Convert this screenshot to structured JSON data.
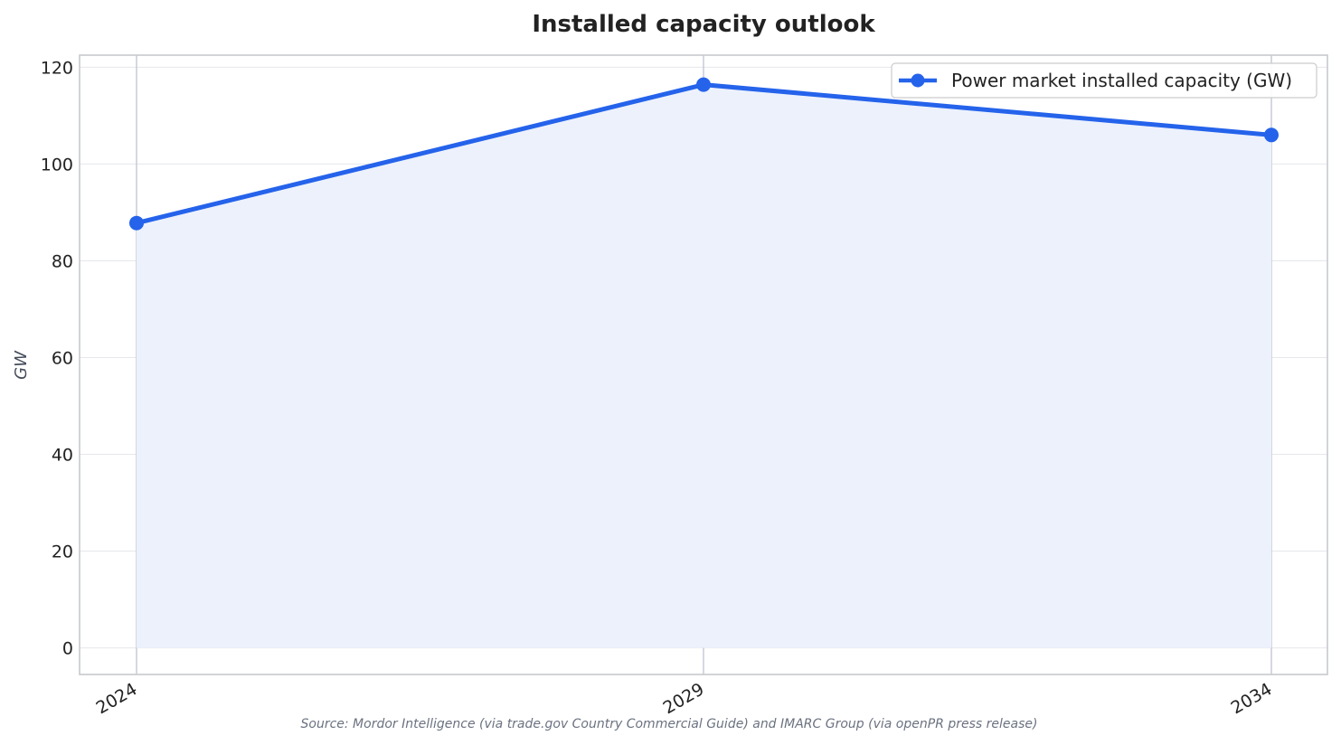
{
  "chart_data": {
    "type": "area",
    "title": "Installed capacity outlook",
    "ylabel": "GW",
    "xlabel": "",
    "categories": [
      "2024",
      "2029",
      "2034"
    ],
    "series": [
      {
        "name": "Power market installed capacity (GW)",
        "values": [
          87.8,
          116.4,
          106.0
        ]
      }
    ],
    "ylim": [
      -5.5,
      122.5
    ],
    "yticks": [
      0,
      20,
      40,
      60,
      80,
      100,
      120
    ],
    "grid": true,
    "legend": "top-right",
    "source": "Source: Mordor Intelligence (via trade.gov Country Commercial Guide) and IMARC Group (via openPR press release)",
    "colors": {
      "line": "#2563eb",
      "fill": "#ecf1fc",
      "grid": "#e5e7eb",
      "frame": "#c7c9cc",
      "vline": "#b9bfce"
    }
  }
}
